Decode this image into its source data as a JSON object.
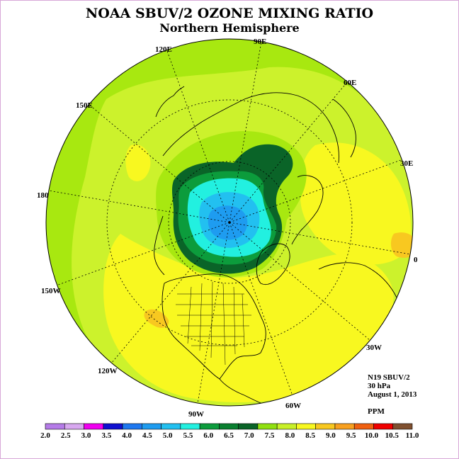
{
  "title": "NOAA SBUV/2 OZONE MIXING RATIO",
  "subtitle": "Northern Hemisphere",
  "longitude_labels": [
    "0",
    "30E",
    "60E",
    "90E",
    "120E",
    "150E",
    "180",
    "150W",
    "120W",
    "90W",
    "60W",
    "30W"
  ],
  "info": {
    "instrument": "N19 SBUV/2",
    "level": "30 hPa",
    "date": "August 1, 2013",
    "units": "PPM"
  },
  "colorbar": {
    "labels": [
      "2.0",
      "2.5",
      "3.0",
      "3.5",
      "4.0",
      "4.5",
      "5.0",
      "5.5",
      "6.0",
      "6.5",
      "7.0",
      "7.5",
      "8.0",
      "8.5",
      "9.0",
      "9.5",
      "10.0",
      "10.5",
      "11.0"
    ],
    "colors": [
      "#b57be8",
      "#d8a8f0",
      "#f000f0",
      "#1010d0",
      "#1e78f0",
      "#1e9cf0",
      "#22c0f0",
      "#22f0e0",
      "#0c9c3c",
      "#0a8030",
      "#0a6428",
      "#90e010",
      "#c8f028",
      "#f8f820",
      "#f8c820",
      "#f8a020",
      "#f06010",
      "#f00000",
      "#805030"
    ]
  },
  "map_colors": {
    "outer_ring": "#a8e810",
    "mid_field": "#ccf22c",
    "yellow_field": "#f8f820",
    "orange_patch": "#f8c820",
    "dark_green": "#0a6428",
    "green": "#0c9c3c",
    "cyan": "#22f0e0",
    "light_blue": "#22c0f0",
    "blue": "#1e9cf0"
  }
}
